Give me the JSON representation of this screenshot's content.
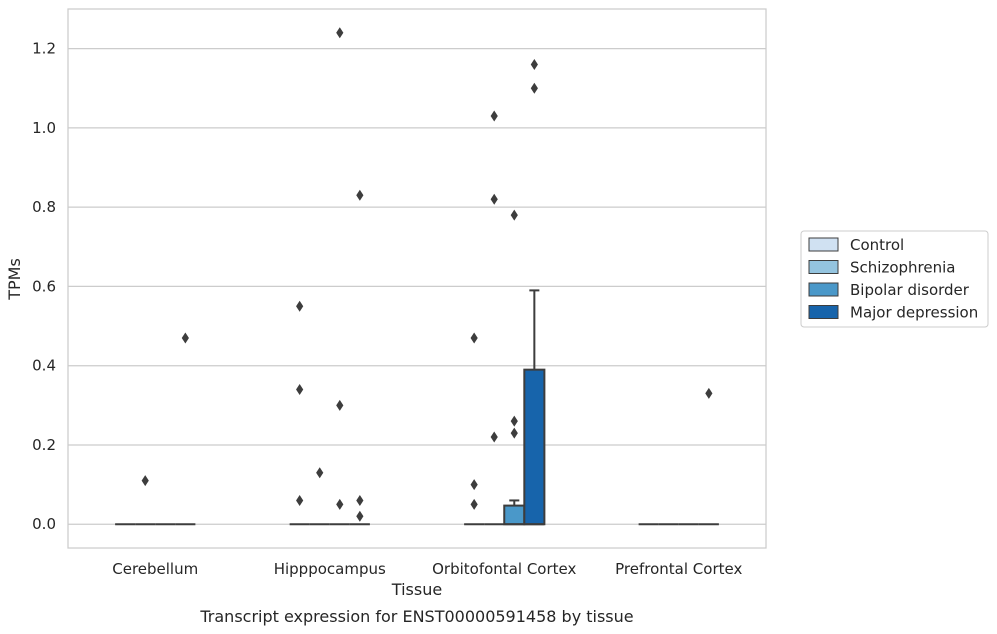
{
  "chart_data": {
    "type": "box",
    "xlabel": "Tissue",
    "ylabel": "TPMs",
    "caption": "Transcript expression for ENST00000591458 by tissue",
    "ylim": [
      -0.06,
      1.3
    ],
    "yticks": [
      "0.0",
      "0.2",
      "0.4",
      "0.6",
      "0.8",
      "1.0",
      "1.2"
    ],
    "ytick_values": [
      0.0,
      0.2,
      0.4,
      0.6,
      0.8,
      1.0,
      1.2
    ],
    "grid": true,
    "legend_position": "right",
    "categories": [
      "Cerebellum",
      "Hipppocampus",
      "Orbitofontal Cortex",
      "Prefrontal Cortex"
    ],
    "series": [
      {
        "name": "Control",
        "color": "#d0e1f2",
        "boxes": [
          {
            "category": "Cerebellum",
            "q1": 0,
            "median": 0,
            "q3": 0,
            "whisker_low": 0,
            "whisker_high": 0,
            "outliers": []
          },
          {
            "category": "Hipppocampus",
            "q1": 0,
            "median": 0,
            "q3": 0,
            "whisker_low": 0,
            "whisker_high": 0,
            "outliers": [
              0.06,
              0.34,
              0.55
            ]
          },
          {
            "category": "Orbitofontal Cortex",
            "q1": 0,
            "median": 0,
            "q3": 0,
            "whisker_low": 0,
            "whisker_high": 0,
            "outliers": [
              0.05,
              0.1,
              0.47
            ]
          },
          {
            "category": "Prefrontal Cortex",
            "q1": 0,
            "median": 0,
            "q3": 0,
            "whisker_low": 0,
            "whisker_high": 0,
            "outliers": []
          }
        ]
      },
      {
        "name": "Schizophrenia",
        "color": "#94c4df",
        "boxes": [
          {
            "category": "Cerebellum",
            "q1": 0,
            "median": 0,
            "q3": 0,
            "whisker_low": 0,
            "whisker_high": 0,
            "outliers": [
              0.11
            ]
          },
          {
            "category": "Hipppocampus",
            "q1": 0,
            "median": 0,
            "q3": 0,
            "whisker_low": 0,
            "whisker_high": 0,
            "outliers": [
              0.13
            ]
          },
          {
            "category": "Orbitofontal Cortex",
            "q1": 0,
            "median": 0,
            "q3": 0,
            "whisker_low": 0,
            "whisker_high": 0,
            "outliers": [
              0.22,
              0.82,
              1.03
            ]
          },
          {
            "category": "Prefrontal Cortex",
            "q1": 0,
            "median": 0,
            "q3": 0,
            "whisker_low": 0,
            "whisker_high": 0,
            "outliers": []
          }
        ]
      },
      {
        "name": "Bipolar disorder",
        "color": "#4a98c9",
        "boxes": [
          {
            "category": "Cerebellum",
            "q1": 0,
            "median": 0,
            "q3": 0,
            "whisker_low": 0,
            "whisker_high": 0,
            "outliers": []
          },
          {
            "category": "Hipppocampus",
            "q1": 0,
            "median": 0,
            "q3": 0,
            "whisker_low": 0,
            "whisker_high": 0,
            "outliers": [
              0.05,
              0.3,
              1.24
            ]
          },
          {
            "category": "Orbitofontal Cortex",
            "q1": 0,
            "median": 0,
            "q3": 0.047,
            "whisker_low": 0,
            "whisker_high": 0.06,
            "outliers": [
              0.23,
              0.26,
              0.78
            ]
          },
          {
            "category": "Prefrontal Cortex",
            "q1": 0,
            "median": 0,
            "q3": 0,
            "whisker_low": 0,
            "whisker_high": 0,
            "outliers": []
          }
        ]
      },
      {
        "name": "Major depression",
        "color": "#1764ab",
        "boxes": [
          {
            "category": "Cerebellum",
            "q1": 0,
            "median": 0,
            "q3": 0,
            "whisker_low": 0,
            "whisker_high": 0,
            "outliers": [
              0.47
            ]
          },
          {
            "category": "Hipppocampus",
            "q1": 0,
            "median": 0,
            "q3": 0,
            "whisker_low": 0,
            "whisker_high": 0,
            "outliers": [
              0.02,
              0.06,
              0.83
            ]
          },
          {
            "category": "Orbitofontal Cortex",
            "q1": 0,
            "median": 0,
            "q3": 0.39,
            "whisker_low": 0,
            "whisker_high": 0.59,
            "outliers": [
              1.1,
              1.16
            ]
          },
          {
            "category": "Prefrontal Cortex",
            "q1": 0,
            "median": 0,
            "q3": 0,
            "whisker_low": 0,
            "whisker_high": 0,
            "outliers": [
              0.33
            ]
          }
        ]
      }
    ]
  }
}
